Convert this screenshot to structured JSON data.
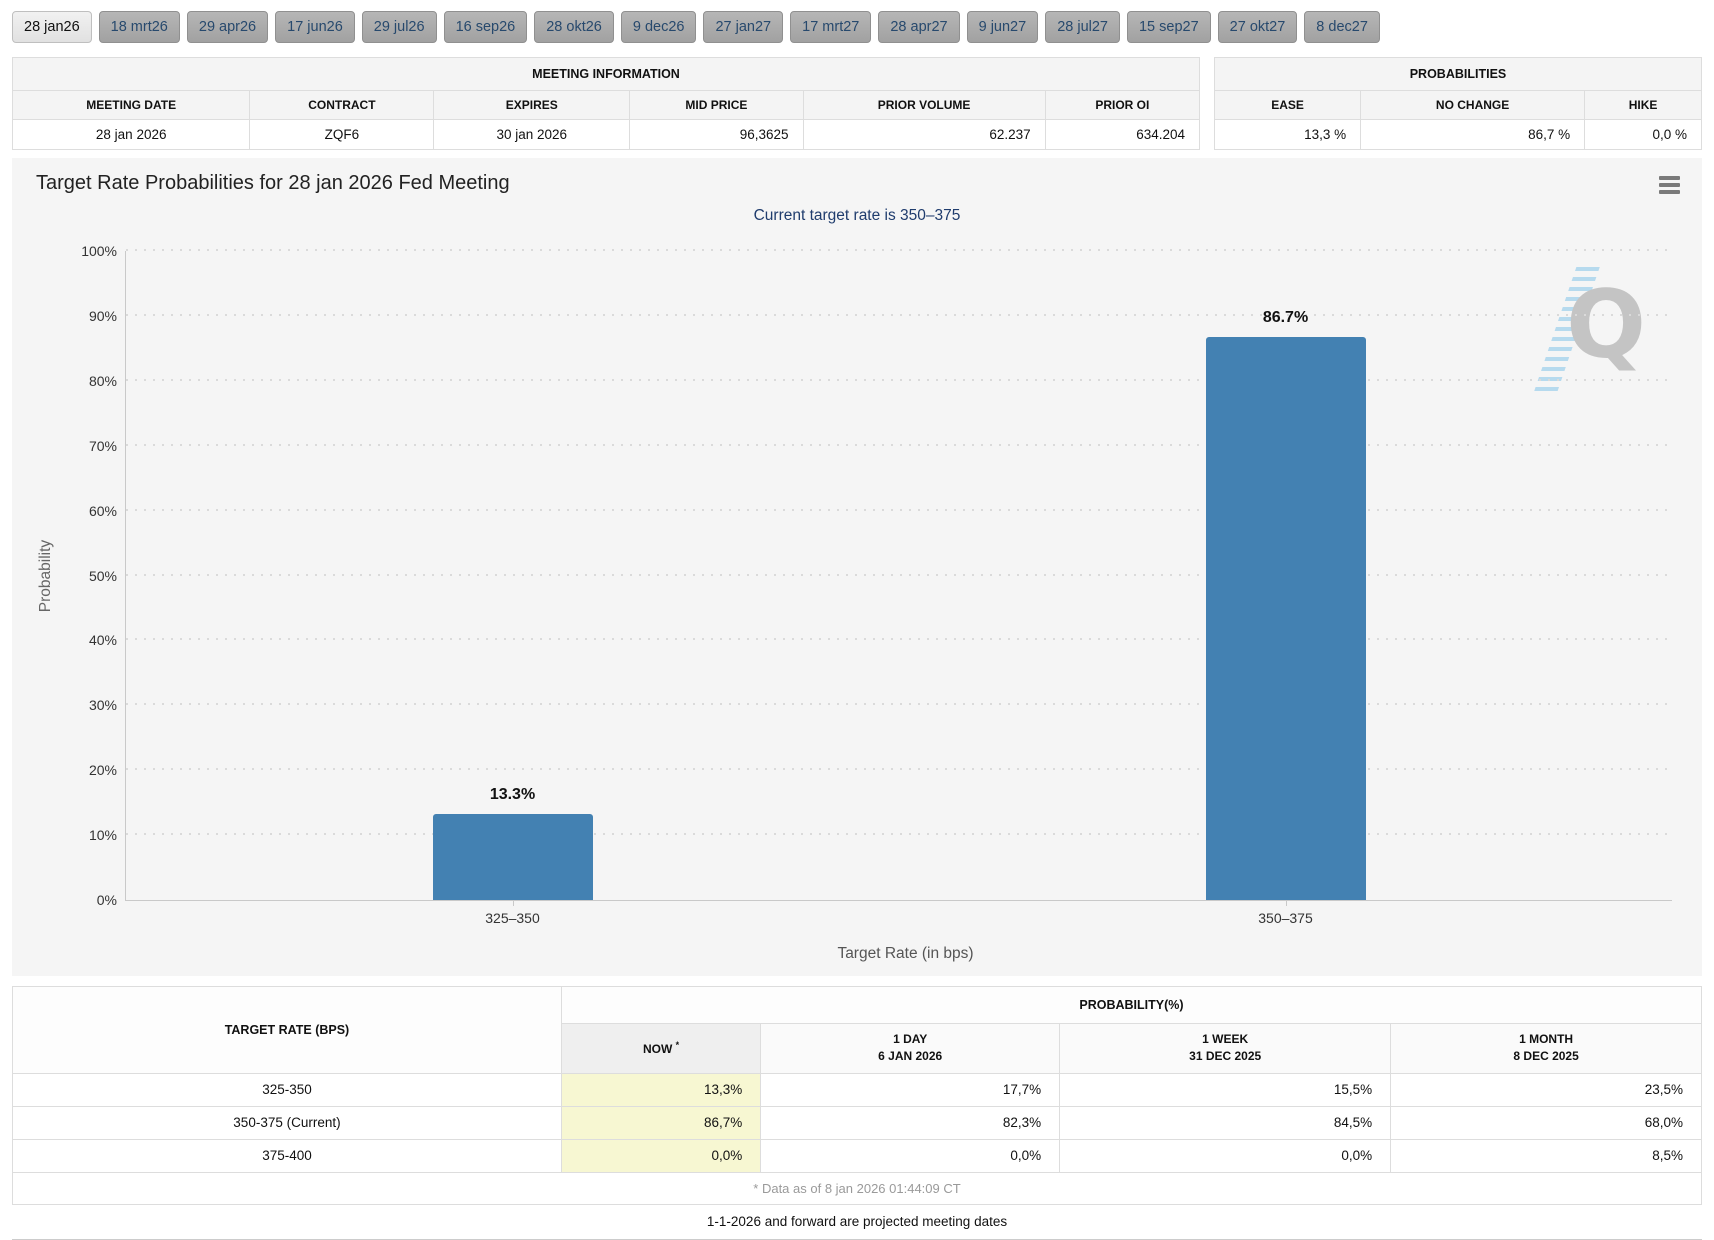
{
  "tabs": {
    "items": [
      {
        "label": "28 jan26",
        "active": true
      },
      {
        "label": "18 mrt26",
        "active": false
      },
      {
        "label": "29 apr26",
        "active": false
      },
      {
        "label": "17 jun26",
        "active": false
      },
      {
        "label": "29 jul26",
        "active": false
      },
      {
        "label": "16 sep26",
        "active": false
      },
      {
        "label": "28 okt26",
        "active": false
      },
      {
        "label": "9 dec26",
        "active": false
      },
      {
        "label": "27 jan27",
        "active": false
      },
      {
        "label": "17 mrt27",
        "active": false
      },
      {
        "label": "28 apr27",
        "active": false
      },
      {
        "label": "9 jun27",
        "active": false
      },
      {
        "label": "28 jul27",
        "active": false
      },
      {
        "label": "15 sep27",
        "active": false
      },
      {
        "label": "27 okt27",
        "active": false
      },
      {
        "label": "8 dec27",
        "active": false
      }
    ]
  },
  "meeting_info": {
    "title": "MEETING INFORMATION",
    "columns": [
      "MEETING DATE",
      "CONTRACT",
      "EXPIRES",
      "MID PRICE",
      "PRIOR VOLUME",
      "PRIOR OI"
    ],
    "values": [
      "28 jan 2026",
      "ZQF6",
      "30 jan 2026",
      "96,3625",
      "62.237",
      "634.204"
    ]
  },
  "probabilities": {
    "title": "PROBABILITIES",
    "columns": [
      "EASE",
      "NO CHANGE",
      "HIKE"
    ],
    "values": [
      "13,3 %",
      "86,7 %",
      "0,0 %"
    ]
  },
  "chart": {
    "menu_icon": "hamburger-icon",
    "watermark_letter": "Q"
  },
  "chart_data": {
    "type": "bar",
    "title": "Target Rate Probabilities for 28 jan 2026 Fed Meeting",
    "subtitle": "Current target rate is 350–375",
    "categories": [
      "325–350",
      "350–375"
    ],
    "values": [
      13.3,
      86.7
    ],
    "data_labels": [
      "13.3%",
      "86.7%"
    ],
    "xlabel": "Target Rate (in bps)",
    "ylabel": "Probability",
    "ylim": [
      0,
      100
    ],
    "ytick_step": 10,
    "ytick_suffix": "%",
    "bar_color": "#4381B2",
    "grid": "dotted horizontal",
    "legend": "none"
  },
  "prob_table": {
    "col1_header": "TARGET RATE (BPS)",
    "group_header": "PROBABILITY(%)",
    "sub_headers": [
      {
        "label": "NOW",
        "sup": "*",
        "date": ""
      },
      {
        "label": "1 DAY",
        "sup": "",
        "date": "6 JAN 2026"
      },
      {
        "label": "1 WEEK",
        "sup": "",
        "date": "31 DEC 2025"
      },
      {
        "label": "1 MONTH",
        "sup": "",
        "date": "8 DEC 2025"
      }
    ],
    "rows": [
      [
        "325-350",
        "13,3%",
        "17,7%",
        "15,5%",
        "23,5%"
      ],
      [
        "350-375 (Current)",
        "86,7%",
        "82,3%",
        "84,5%",
        "68,0%"
      ],
      [
        "375-400",
        "0,0%",
        "0,0%",
        "0,0%",
        "8,5%"
      ]
    ],
    "footnote": "* Data as of 8 jan 2026 01:44:09 CT"
  },
  "footer_note": "1-1-2026 and forward are projected meeting dates",
  "colors": {
    "bar": "#4381B2",
    "now_column_bg": "#F7F7D2",
    "subtitle_text": "#1F3C6D",
    "panel_bg": "#F5F5F5"
  }
}
